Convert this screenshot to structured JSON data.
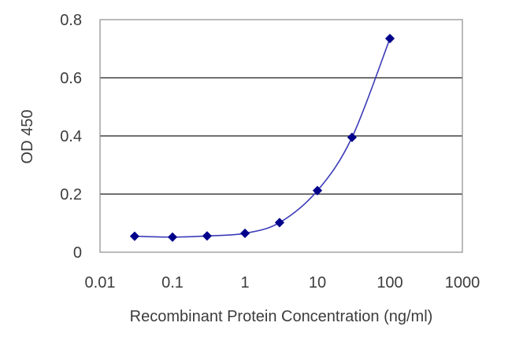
{
  "chart_data": {
    "type": "line",
    "title": "",
    "xlabel": "Recombinant Protein Concentration (ng/ml)",
    "ylabel": "OD 450",
    "x_scale": "log",
    "xlim": [
      0.01,
      1000
    ],
    "ylim": [
      0,
      0.8
    ],
    "x_ticks": [
      "0.01",
      "0.1",
      "1",
      "10",
      "100",
      "1000"
    ],
    "y_ticks": [
      "0",
      "0.2",
      "0.4",
      "0.6",
      "0.8"
    ],
    "grid": "horizontal",
    "series": [
      {
        "x": [
          0.03,
          0.1,
          0.3,
          1,
          3,
          10,
          30,
          100
        ],
        "y": [
          0.055,
          0.052,
          0.056,
          0.065,
          0.102,
          0.212,
          0.395,
          0.735
        ],
        "color": "#00008b",
        "line_color": "#3b3bb8",
        "marker": "diamond"
      }
    ]
  }
}
